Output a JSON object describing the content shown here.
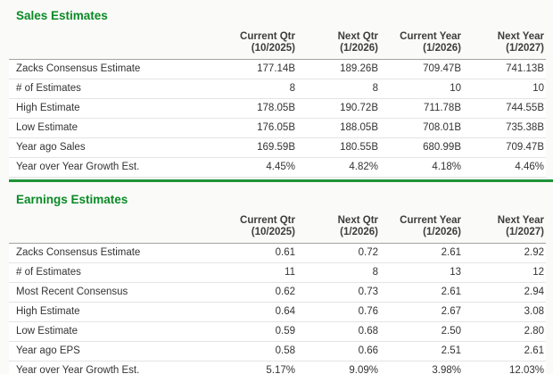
{
  "accent": {
    "title_green": "#0a8a26",
    "divider_green": "#1e9237",
    "row_border": "#e4e4e4",
    "header_border": "#a3a3a3"
  },
  "sales": {
    "title": "Sales Estimates",
    "columns": [
      {
        "line1": "Current Qtr",
        "line2": "(10/2025)"
      },
      {
        "line1": "Next Qtr",
        "line2": "(1/2026)"
      },
      {
        "line1": "Current Year",
        "line2": "(1/2026)"
      },
      {
        "line1": "Next Year",
        "line2": "(1/2027)"
      }
    ],
    "rows": [
      {
        "label": "Zacks Consensus Estimate",
        "values": [
          "177.14B",
          "189.26B",
          "709.47B",
          "741.13B"
        ]
      },
      {
        "label": "# of Estimates",
        "values": [
          "8",
          "8",
          "10",
          "10"
        ]
      },
      {
        "label": "High Estimate",
        "values": [
          "178.05B",
          "190.72B",
          "711.78B",
          "744.55B"
        ]
      },
      {
        "label": "Low Estimate",
        "values": [
          "176.05B",
          "188.05B",
          "708.01B",
          "735.38B"
        ]
      },
      {
        "label": "Year ago Sales",
        "values": [
          "169.59B",
          "180.55B",
          "680.99B",
          "709.47B"
        ]
      },
      {
        "label": "Year over Year Growth Est.",
        "values": [
          "4.45%",
          "4.82%",
          "4.18%",
          "4.46%"
        ]
      }
    ]
  },
  "earnings": {
    "title": "Earnings Estimates",
    "columns": [
      {
        "line1": "Current Qtr",
        "line2": "(10/2025)"
      },
      {
        "line1": "Next Qtr",
        "line2": "(1/2026)"
      },
      {
        "line1": "Current Year",
        "line2": "(1/2026)"
      },
      {
        "line1": "Next Year",
        "line2": "(1/2027)"
      }
    ],
    "rows": [
      {
        "label": "Zacks Consensus Estimate",
        "values": [
          "0.61",
          "0.72",
          "2.61",
          "2.92"
        ]
      },
      {
        "label": "# of Estimates",
        "values": [
          "11",
          "8",
          "13",
          "12"
        ]
      },
      {
        "label": "Most Recent Consensus",
        "values": [
          "0.62",
          "0.73",
          "2.61",
          "2.94"
        ]
      },
      {
        "label": "High Estimate",
        "values": [
          "0.64",
          "0.76",
          "2.67",
          "3.08"
        ]
      },
      {
        "label": "Low Estimate",
        "values": [
          "0.59",
          "0.68",
          "2.50",
          "2.80"
        ]
      },
      {
        "label": "Year ago EPS",
        "values": [
          "0.58",
          "0.66",
          "2.51",
          "2.61"
        ]
      },
      {
        "label": "Year over Year Growth Est.",
        "values": [
          "5.17%",
          "9.09%",
          "3.98%",
          "12.03%"
        ]
      }
    ]
  }
}
